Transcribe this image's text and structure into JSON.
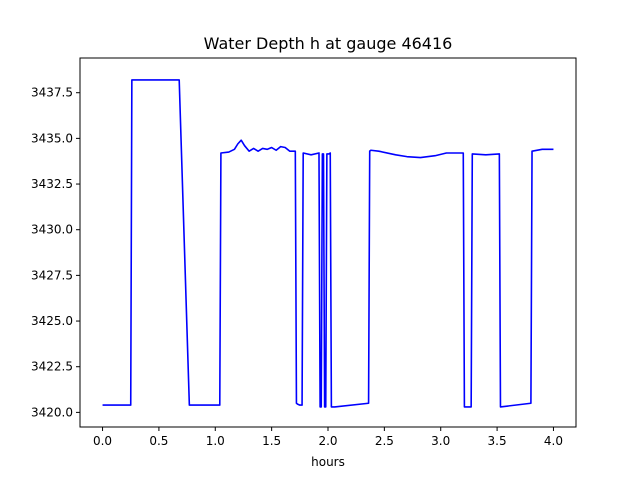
{
  "chart_data": {
    "type": "line",
    "title": "Water Depth h at gauge 46416",
    "xlabel": "hours",
    "ylabel": "",
    "xlim": [
      -0.2,
      4.2
    ],
    "ylim": [
      3419.2,
      3439.4
    ],
    "xticks": [
      0.0,
      0.5,
      1.0,
      1.5,
      2.0,
      2.5,
      3.0,
      3.5,
      4.0
    ],
    "xtick_labels": [
      "0.0",
      "0.5",
      "1.0",
      "1.5",
      "2.0",
      "2.5",
      "3.0",
      "3.5",
      "4.0"
    ],
    "yticks": [
      3420.0,
      3422.5,
      3425.0,
      3427.5,
      3430.0,
      3432.5,
      3435.0,
      3437.5
    ],
    "ytick_labels": [
      "3420.0",
      "3422.5",
      "3425.0",
      "3427.5",
      "3430.0",
      "3432.5",
      "3435.0",
      "3437.5"
    ],
    "grid": false,
    "series": [
      {
        "color": "#0000ff",
        "x": [
          0.0,
          0.25,
          0.26,
          0.68,
          0.77,
          1.04,
          1.05,
          1.12,
          1.17,
          1.2,
          1.23,
          1.26,
          1.3,
          1.34,
          1.38,
          1.42,
          1.46,
          1.5,
          1.54,
          1.58,
          1.62,
          1.66,
          1.71,
          1.72,
          1.73,
          1.75,
          1.77,
          1.78,
          1.85,
          1.92,
          1.93,
          1.94,
          1.95,
          1.96,
          1.97,
          1.98,
          1.99,
          2.0,
          2.01,
          2.02,
          2.03,
          2.04,
          2.05,
          2.06,
          2.36,
          2.37,
          2.38,
          2.45,
          2.6,
          2.7,
          2.82,
          2.95,
          3.05,
          3.15,
          3.2,
          3.21,
          3.27,
          3.28,
          3.4,
          3.52,
          3.53,
          3.8,
          3.81,
          3.9,
          4.0
        ],
        "y": [
          3420.4,
          3420.4,
          3438.2,
          3438.2,
          3420.4,
          3420.4,
          3434.2,
          3434.25,
          3434.4,
          3434.7,
          3434.9,
          3434.6,
          3434.3,
          3434.45,
          3434.3,
          3434.45,
          3434.4,
          3434.5,
          3434.35,
          3434.55,
          3434.5,
          3434.3,
          3434.3,
          3420.5,
          3420.45,
          3420.4,
          3420.4,
          3434.2,
          3434.1,
          3434.2,
          3420.3,
          3420.3,
          3434.15,
          3434.15,
          3420.3,
          3420.3,
          3434.15,
          3434.15,
          3434.15,
          3434.2,
          3420.3,
          3420.3,
          3420.3,
          3420.3,
          3420.5,
          3434.3,
          3434.35,
          3434.3,
          3434.1,
          3434.0,
          3433.95,
          3434.05,
          3434.2,
          3434.2,
          3434.2,
          3420.3,
          3420.3,
          3434.15,
          3434.1,
          3434.15,
          3420.3,
          3420.5,
          3434.3,
          3434.4,
          3434.4
        ]
      }
    ]
  }
}
